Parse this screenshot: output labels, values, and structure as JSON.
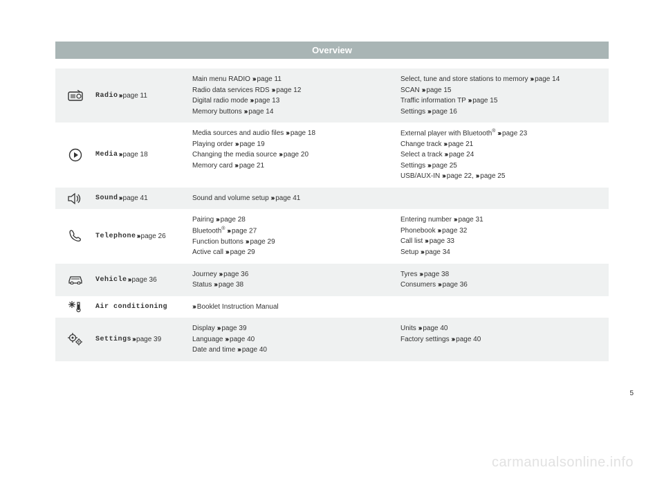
{
  "header": "Overview",
  "page_number": "5",
  "watermark": "carmanualsonline.info",
  "chevron": "›››",
  "rows": [
    {
      "icon": "radio-icon",
      "label_mono": "Radio",
      "label_page": "page 11",
      "col1": [
        {
          "text": "Main menu RADIO",
          "ref": "page 11"
        },
        {
          "text": "Radio data services RDS",
          "ref": "page 12"
        },
        {
          "text": "Digital radio mode",
          "ref": "page 13"
        },
        {
          "text": "Memory buttons",
          "ref": "page 14"
        }
      ],
      "col2": [
        {
          "text": "Select, tune and store stations to memory",
          "ref": "page 14"
        },
        {
          "text": "SCAN",
          "ref": "page 15"
        },
        {
          "text": "Traffic information TP",
          "ref": "page 15"
        },
        {
          "text": "Settings",
          "ref": "page 16"
        }
      ]
    },
    {
      "icon": "media-icon",
      "label_mono": "Media",
      "label_page": "page 18",
      "col1": [
        {
          "text": "Media sources and audio files",
          "ref": "page 18"
        },
        {
          "text": "Playing order",
          "ref": "page 19"
        },
        {
          "text": "Changing the media source",
          "ref": "page 20"
        },
        {
          "text": "Memory card",
          "ref": "page 21"
        }
      ],
      "col2": [
        {
          "text_html": "External player with Bluetooth<span class='sup'>®</span>",
          "ref": "page 23"
        },
        {
          "text": "Change track",
          "ref": "page 21"
        },
        {
          "text": "Select a track",
          "ref": "page 24"
        },
        {
          "text": "Settings",
          "ref": "page 25"
        },
        {
          "text": "USB/AUX-IN",
          "ref": "page 22,",
          "ref2": "page 25"
        }
      ]
    },
    {
      "icon": "sound-icon",
      "label_mono": "Sound",
      "label_page": "page 41",
      "col1": [
        {
          "text": "Sound and volume setup",
          "ref": "page 41"
        }
      ],
      "col2": []
    },
    {
      "icon": "phone-icon",
      "label_mono": "Telephone",
      "label_page": "page 26",
      "col1": [
        {
          "text": "Pairing",
          "ref": "page 28"
        },
        {
          "text_html": "Bluetooth<span class='sup'>®</span>",
          "ref": "page 27"
        },
        {
          "text": "Function buttons",
          "ref": "page 29"
        },
        {
          "text": "Active call",
          "ref": "page 29"
        }
      ],
      "col2": [
        {
          "text": "Entering number",
          "ref": "page 31"
        },
        {
          "text": "Phonebook",
          "ref": "page 32"
        },
        {
          "text": "Call list",
          "ref": "page 33"
        },
        {
          "text": "Setup",
          "ref": "page 34"
        }
      ]
    },
    {
      "icon": "vehicle-icon",
      "label_mono": "Vehicle",
      "label_page": "page 36",
      "col1": [
        {
          "text": "Journey",
          "ref": "page 36"
        },
        {
          "text": "Status",
          "ref": "page 38"
        }
      ],
      "col2": [
        {
          "text": "Tyres",
          "ref": "page 38"
        },
        {
          "text": "Consumers",
          "ref": "page 36"
        }
      ]
    },
    {
      "icon": "aircon-icon",
      "label_mono": "Air conditioning",
      "label_page": "",
      "col1": [
        {
          "chev_first": true,
          "text": "Booklet Instruction Manual"
        }
      ],
      "col2": []
    },
    {
      "icon": "settings-icon",
      "label_mono": "Settings",
      "label_page": "page 39",
      "col1": [
        {
          "text": "Display",
          "ref": "page 39"
        },
        {
          "text": "Language",
          "ref": "page 40"
        },
        {
          "text": "Date and time",
          "ref": "page 40"
        }
      ],
      "col2": [
        {
          "text": "Units",
          "ref": "page 40"
        },
        {
          "text": "Factory settings",
          "ref": "page 40"
        }
      ]
    }
  ]
}
